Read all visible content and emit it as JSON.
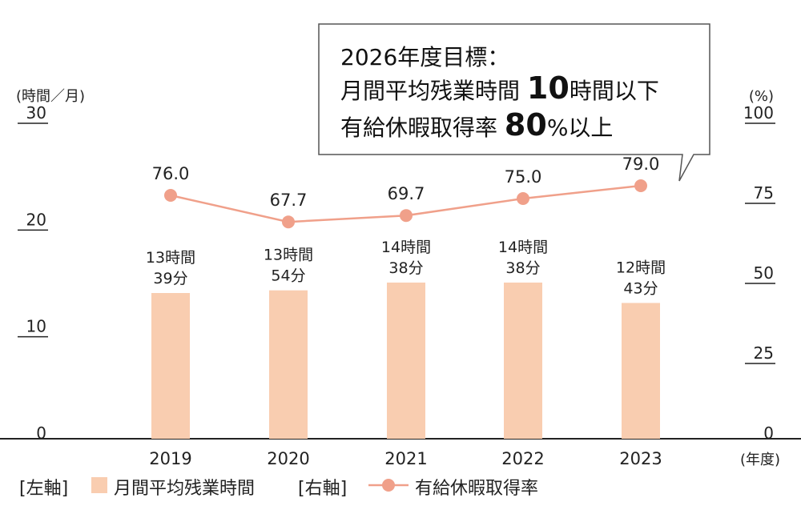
{
  "callout": {
    "line1": "2026年度目標：",
    "line2_prefix": "月間平均残業時間",
    "line2_value": "10",
    "line2_suffix": "時間以下",
    "line3_prefix": "有給休暇取得率",
    "line3_value": "80",
    "line3_suffix": "%以上"
  },
  "legend": {
    "left_axis_label": "[左軸]",
    "bar_series_name": "月間平均残業時間",
    "right_axis_label": "[右軸]",
    "line_series_name": "有給休暇取得率"
  },
  "colors": {
    "bar": "#f9cdb0",
    "line": "#f0a08a",
    "callout_border": "#555555"
  },
  "chart_data": {
    "type": "bar",
    "categories": [
      "2019",
      "2020",
      "2021",
      "2022",
      "2023"
    ],
    "xlabel": "(年度)",
    "left_axis": {
      "unit_label": "(時間／月)",
      "range": [
        0,
        30
      ],
      "ticks": [
        "0",
        "10",
        "20",
        "30"
      ]
    },
    "right_axis": {
      "unit_label": "(%)",
      "range": [
        0,
        100
      ],
      "ticks": [
        "0",
        "25",
        "50",
        "75",
        "100"
      ]
    },
    "series": [
      {
        "name": "月間平均残業時間",
        "type": "bar",
        "axis": "left",
        "values": [
          13.65,
          13.9,
          14.63,
          14.63,
          12.72
        ],
        "labels_line1": [
          "13時間",
          "13時間",
          "14時間",
          "14時間",
          "12時間"
        ],
        "labels_line2": [
          "39分",
          "54分",
          "38分",
          "38分",
          "43分"
        ]
      },
      {
        "name": "有給休暇取得率",
        "type": "line",
        "axis": "right",
        "values": [
          76.0,
          67.7,
          69.7,
          75.0,
          79.0
        ],
        "labels": [
          "76.0",
          "67.7",
          "69.7",
          "75.0",
          "79.0"
        ]
      }
    ],
    "grid": false,
    "legend_position": "bottom-left"
  }
}
